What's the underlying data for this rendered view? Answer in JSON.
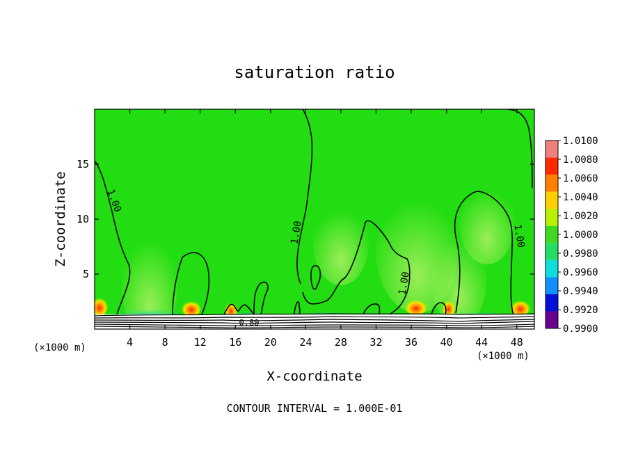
{
  "chart_data": {
    "type": "heatmap",
    "title": "saturation ratio",
    "xlabel": "X-coordinate",
    "ylabel": "Z-coordinate",
    "x_unit_left": "(×1000 m)",
    "x_unit_right": "(×1000 m)",
    "xlim": [
      0,
      50
    ],
    "ylim": [
      0,
      20
    ],
    "x_ticks": [
      4,
      8,
      12,
      16,
      20,
      24,
      28,
      32,
      36,
      40,
      44,
      48
    ],
    "y_ticks": [
      5,
      10,
      15
    ],
    "contour_label": "1.00",
    "bottom_contour_label": "0.80",
    "footer": "CONTOUR INTERVAL = 1.000E-01",
    "colorbar": {
      "levels": [
        "1.0100",
        "1.0080",
        "1.0060",
        "1.0040",
        "1.0020",
        "1.0000",
        "0.9980",
        "0.9960",
        "0.9940",
        "0.9920",
        "0.9900"
      ],
      "colors": [
        "#f08080",
        "#ff2a00",
        "#ff7f00",
        "#ffd000",
        "#b8f000",
        "#40d820",
        "#22dd66",
        "#11dddd",
        "#1090ff",
        "#0010d8",
        "#6a0090"
      ]
    },
    "background_color": "#22dd11"
  }
}
